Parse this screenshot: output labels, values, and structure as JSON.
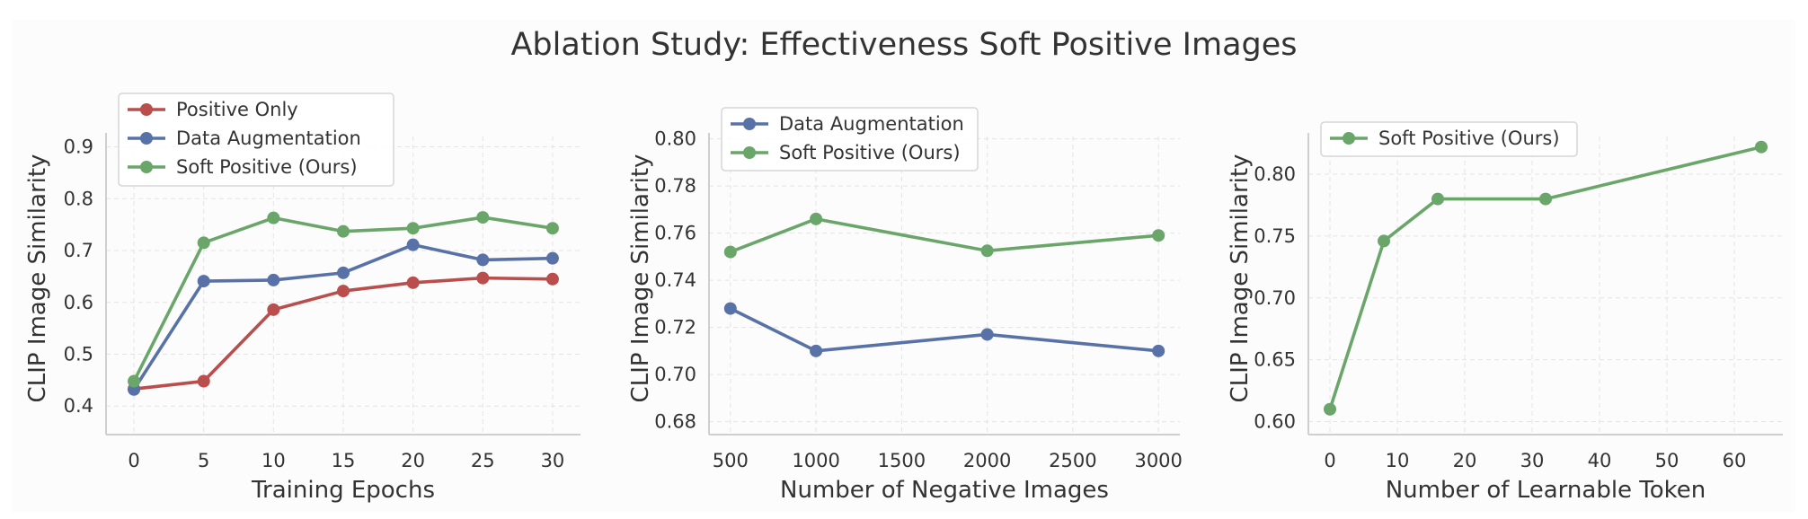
{
  "title": "Ablation Study: Effectiveness Soft Positive Images",
  "colors": {
    "red": "#b94e4c",
    "blue": "#5872a8",
    "green": "#6aa66a",
    "axis": "#cfcfcf",
    "grid": "#e4e4e4",
    "text": "#333333"
  },
  "chart_data": [
    {
      "type": "line",
      "xlabel": "Training Epochs",
      "ylabel": "CLIP Image Similarity",
      "x": [
        0,
        5,
        10,
        15,
        20,
        25,
        30
      ],
      "xticks": [
        0,
        5,
        10,
        15,
        20,
        25,
        30
      ],
      "yticks": [
        0.4,
        0.5,
        0.6,
        0.7,
        0.8,
        0.9
      ],
      "ytick_labels": [
        "0.4",
        "0.5",
        "0.6",
        "0.7",
        "0.8",
        "0.9"
      ],
      "xlim": [
        -2,
        32
      ],
      "ylim": [
        0.345,
        0.92
      ],
      "legend": "top-left",
      "series": [
        {
          "name": "Positive Only",
          "color": "red",
          "values": [
            0.433,
            0.448,
            0.586,
            0.622,
            0.638,
            0.647,
            0.645
          ]
        },
        {
          "name": "Data Augmentation",
          "color": "blue",
          "values": [
            0.432,
            0.641,
            0.643,
            0.657,
            0.711,
            0.682,
            0.685
          ]
        },
        {
          "name": "Soft Positive (Ours)",
          "color": "green",
          "values": [
            0.448,
            0.715,
            0.763,
            0.737,
            0.743,
            0.764,
            0.743
          ]
        }
      ]
    },
    {
      "type": "line",
      "xlabel": "Number of Negative Images",
      "ylabel": "CLIP Image Similarity",
      "x": [
        500,
        1000,
        2000,
        3000
      ],
      "xticks": [
        500,
        1000,
        1500,
        2000,
        2500,
        3000
      ],
      "yticks": [
        0.68,
        0.7,
        0.72,
        0.74,
        0.76,
        0.78,
        0.8
      ],
      "ytick_labels": [
        "0.68",
        "0.70",
        "0.72",
        "0.74",
        "0.76",
        "0.78",
        "0.80"
      ],
      "xlim": [
        375,
        3125
      ],
      "ylim": [
        0.6745,
        0.801
      ],
      "legend": "top-left",
      "series": [
        {
          "name": "Data Augmentation",
          "color": "blue",
          "values": [
            0.728,
            0.71,
            0.717,
            0.71
          ]
        },
        {
          "name": "Soft Positive (Ours)",
          "color": "green",
          "values": [
            0.752,
            0.766,
            0.7525,
            0.759
          ]
        }
      ]
    },
    {
      "type": "line",
      "xlabel": "Number of Learnable Token",
      "ylabel": "CLIP Image Similarity",
      "x": [
        0,
        8,
        16,
        32,
        64
      ],
      "xticks": [
        0,
        10,
        20,
        30,
        40,
        50,
        60
      ],
      "yticks": [
        0.6,
        0.65,
        0.7,
        0.75,
        0.8
      ],
      "ytick_labels": [
        "0.60",
        "0.65",
        "0.70",
        "0.75",
        "0.80"
      ],
      "xlim": [
        -3.2,
        67.2
      ],
      "ylim": [
        0.5895,
        0.8305
      ],
      "legend": "top-left",
      "series": [
        {
          "name": "Soft Positive (Ours)",
          "color": "green",
          "values": [
            0.61,
            0.746,
            0.78,
            0.78,
            0.822
          ]
        }
      ]
    }
  ]
}
